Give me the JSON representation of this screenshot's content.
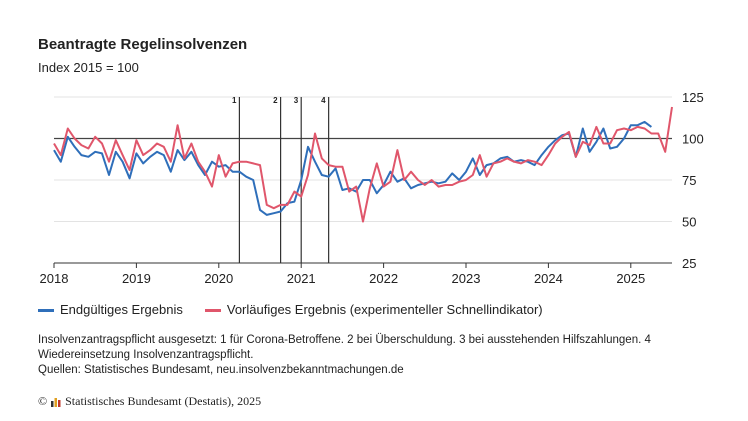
{
  "chart_data": {
    "type": "line",
    "title": "Beantragte Regelinsolvenzen",
    "subtitle": "Index 2015 = 100",
    "x": [
      2018,
      2018.083,
      2018.167,
      2018.25,
      2018.333,
      2018.417,
      2018.5,
      2018.583,
      2018.667,
      2018.75,
      2018.833,
      2018.917,
      2019,
      2019.083,
      2019.167,
      2019.25,
      2019.333,
      2019.417,
      2019.5,
      2019.583,
      2019.667,
      2019.75,
      2019.833,
      2019.917,
      2020,
      2020.083,
      2020.167,
      2020.25,
      2020.333,
      2020.417,
      2020.5,
      2020.583,
      2020.667,
      2020.75,
      2020.833,
      2020.917,
      2021,
      2021.083,
      2021.167,
      2021.25,
      2021.333,
      2021.417,
      2021.5,
      2021.583,
      2021.667,
      2021.75,
      2021.833,
      2021.917,
      2022,
      2022.083,
      2022.167,
      2022.25,
      2022.333,
      2022.417,
      2022.5,
      2022.583,
      2022.667,
      2022.75,
      2022.833,
      2022.917,
      2023,
      2023.083,
      2023.167,
      2023.25,
      2023.333,
      2023.417,
      2023.5,
      2023.583,
      2023.667,
      2023.75,
      2023.833,
      2023.917,
      2024,
      2024.083,
      2024.167,
      2024.25,
      2024.333,
      2024.417,
      2024.5,
      2024.583,
      2024.667,
      2024.75,
      2024.833,
      2024.917,
      2025,
      2025.083,
      2025.167,
      2025.25,
      2025.333,
      2025.417,
      2025.5
    ],
    "series": [
      {
        "name": "Endgültiges Ergebnis",
        "color": "#2f6fba",
        "values": [
          93,
          86,
          101,
          95,
          90,
          89,
          92,
          91,
          78,
          92,
          86,
          76,
          91,
          85,
          89,
          92,
          90,
          80,
          93,
          87,
          92,
          84,
          78,
          86,
          83,
          84,
          80,
          80,
          77,
          75,
          57,
          54,
          55,
          56,
          61,
          62,
          75,
          95,
          86,
          78,
          77,
          82,
          69,
          70,
          68,
          75,
          75,
          67,
          72,
          80,
          74,
          76,
          70,
          72,
          73,
          74,
          73,
          74,
          79,
          75,
          80,
          88,
          78,
          84,
          85,
          88,
          89,
          86,
          87,
          86,
          84,
          90,
          95,
          99,
          102,
          103,
          89,
          106,
          92,
          98,
          106,
          94,
          95,
          100,
          108,
          108,
          110,
          107,
          null,
          null,
          null
        ]
      },
      {
        "name": "Vorläufiges Ergebnis (experimenteller Schnellindikator)",
        "color": "#e0566b",
        "values": [
          97,
          90,
          106,
          100,
          96,
          94,
          101,
          97,
          86,
          99,
          90,
          81,
          99,
          90,
          93,
          97,
          95,
          86,
          108,
          88,
          97,
          86,
          80,
          71,
          90,
          77,
          85,
          86,
          86,
          85,
          84,
          60,
          58,
          60,
          60,
          68,
          65,
          78,
          103,
          88,
          84,
          83,
          83,
          68,
          71,
          50,
          70,
          85,
          71,
          74,
          93,
          75,
          80,
          75,
          72,
          75,
          71,
          72,
          72,
          74,
          75,
          78,
          90,
          77,
          85,
          86,
          88,
          86,
          85,
          87,
          86,
          84,
          90,
          97,
          101,
          104,
          89,
          98,
          96,
          107,
          97,
          97,
          105,
          106,
          105,
          107,
          106,
          103,
          103,
          92,
          119
        ]
      }
    ],
    "xlim": [
      2018,
      2025.5
    ],
    "xticks": [
      2018,
      2019,
      2020,
      2021,
      2022,
      2023,
      2024,
      2025
    ],
    "ylim": [
      25,
      125
    ],
    "yticks": [
      25,
      50,
      75,
      100,
      125
    ],
    "reference_line": 100,
    "annotations": [
      {
        "x": 2020.25,
        "label": "1"
      },
      {
        "x": 2020.75,
        "label": "2"
      },
      {
        "x": 2021,
        "label": "3"
      },
      {
        "x": 2021.333,
        "label": "4"
      }
    ],
    "note": "Insolvenzantragspflicht ausgesetzt: 1 für Corona-Betroffene. 2 bei Überschuldung. 3 bei ausstehenden Hilfszahlungen. 4 Wiedereinsetzung Insolvenzantragspflicht.",
    "source": "Quellen: Statistisches Bundesamt, neu.insolvenzbekanntmachungen.de",
    "copyright": "Statistisches Bundesamt (Destatis), 2025"
  }
}
